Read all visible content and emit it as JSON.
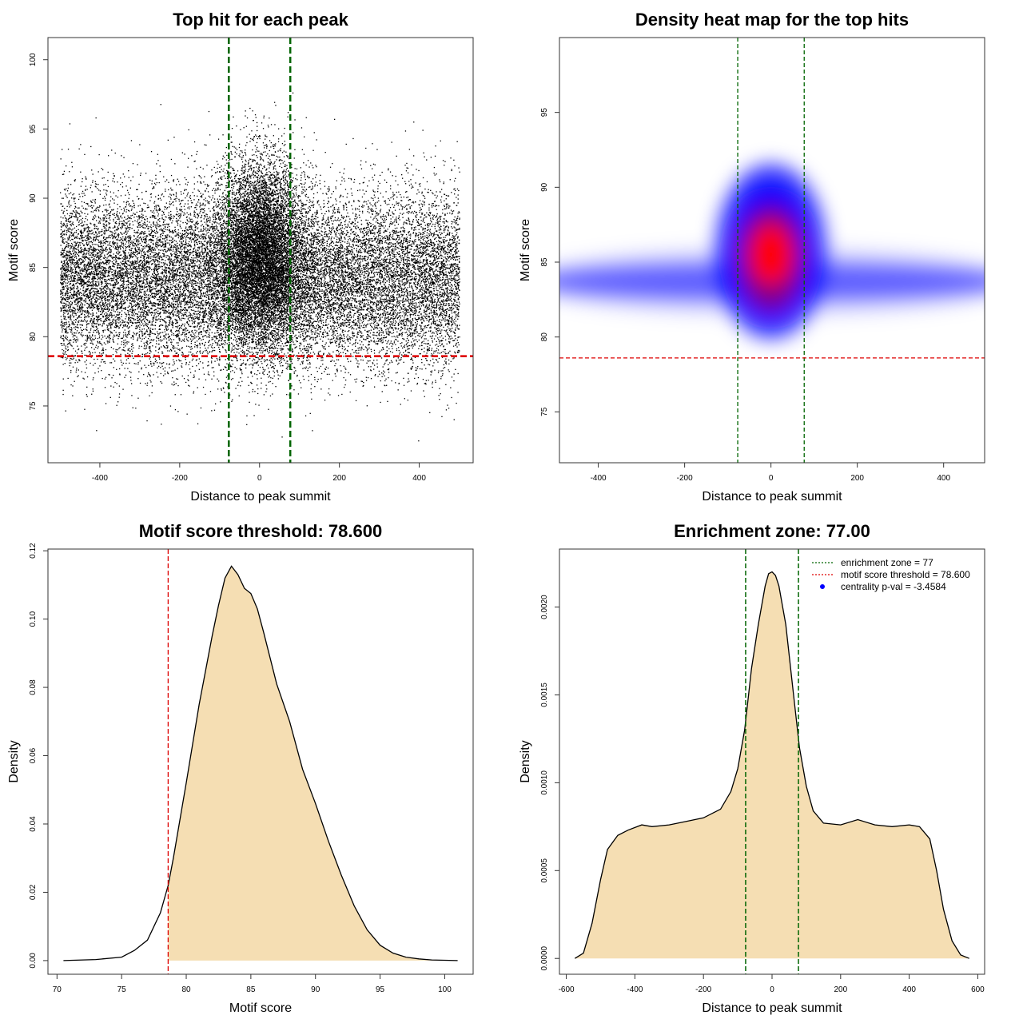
{
  "chart_data": [
    {
      "type": "scatter",
      "title": "Top hit for each peak",
      "xlabel": "Distance to peak summit",
      "ylabel": "Motif score",
      "xlim": [
        -530,
        535
      ],
      "ylim": [
        70.9,
        101.6
      ],
      "xticks": [
        -400,
        -200,
        0,
        200,
        400
      ],
      "yticks": [
        75,
        80,
        85,
        90,
        95,
        100
      ],
      "n_points_approx": 30000,
      "x_range": [
        -500,
        500
      ],
      "background_y_mean": 84.2,
      "background_y_sd": 3.1,
      "central_cluster": {
        "x_center": 0,
        "x_sd": 55,
        "y_mean": 86.0,
        "y_sd": 3.3
      },
      "reference_lines": {
        "vertical": [
          -77,
          77
        ],
        "vertical_color": "#006400",
        "horizontal": 78.6,
        "horizontal_color": "#dd0000"
      }
    },
    {
      "type": "heatmap",
      "title": "Density heat map for the top hits",
      "xlabel": "Distance to peak summit",
      "ylabel": "Motif score",
      "xlim": [
        -490,
        495
      ],
      "ylim": [
        71.6,
        100
      ],
      "xticks": [
        -400,
        -200,
        0,
        200,
        400
      ],
      "yticks": [
        75,
        80,
        85,
        90,
        95
      ],
      "palette": [
        "#ffffff",
        "#0000ff",
        "#ff0000"
      ],
      "peak": {
        "x": 0,
        "y": 85.5
      },
      "reference_lines": {
        "vertical": [
          -77,
          77
        ],
        "vertical_color": "#006400",
        "horizontal": 78.6,
        "horizontal_color": "#dd0000"
      }
    },
    {
      "type": "area",
      "title": "Motif score threshold: 78.600",
      "xlabel": "Motif score",
      "ylabel": "Density",
      "xlim": [
        69.3,
        102.2
      ],
      "ylim": [
        -0.004,
        0.1205
      ],
      "xticks": [
        70,
        75,
        80,
        85,
        90,
        95,
        100
      ],
      "yticks": [
        0.0,
        0.02,
        0.04,
        0.06,
        0.08,
        0.1,
        0.12
      ],
      "ytick_labels": [
        "0.00",
        "0.02",
        "0.04",
        "0.06",
        "0.08",
        "0.10",
        "0.12"
      ],
      "fill_color": "#f5deb3",
      "fill_from_x": 78.6,
      "x": [
        70.5,
        73,
        75,
        76,
        77,
        78,
        78.6,
        79,
        80,
        81,
        82,
        82.5,
        83,
        83.5,
        84,
        84.5,
        85,
        85.5,
        86,
        87,
        88,
        89,
        90,
        91,
        92,
        93,
        94,
        95,
        96,
        97,
        98,
        99,
        100,
        101
      ],
      "y": [
        0,
        0.0003,
        0.001,
        0.003,
        0.006,
        0.014,
        0.022,
        0.03,
        0.052,
        0.075,
        0.095,
        0.104,
        0.112,
        0.1155,
        0.113,
        0.109,
        0.1075,
        0.103,
        0.096,
        0.081,
        0.07,
        0.056,
        0.046,
        0.035,
        0.025,
        0.016,
        0.009,
        0.0045,
        0.0022,
        0.001,
        0.0005,
        0.0002,
        0.0001,
        0
      ],
      "reference_lines": {
        "vertical": [
          78.6
        ],
        "vertical_color": "#dd0000"
      }
    },
    {
      "type": "area",
      "title": "Enrichment zone: 77.00",
      "xlabel": "Distance to peak summit",
      "ylabel": "Density",
      "xlim": [
        -620,
        620
      ],
      "ylim": [
        -9e-05,
        0.00233
      ],
      "xticks": [
        -600,
        -400,
        -200,
        0,
        200,
        400,
        600
      ],
      "yticks": [
        0,
        0.0005,
        0.001,
        0.0015,
        0.002
      ],
      "ytick_labels": [
        "0.0000",
        "0.0005",
        "0.0010",
        "0.0015",
        "0.0020"
      ],
      "fill_color": "#f5deb3",
      "x": [
        -575,
        -550,
        -525,
        -500,
        -480,
        -450,
        -420,
        -380,
        -350,
        -300,
        -250,
        -200,
        -150,
        -120,
        -100,
        -80,
        -60,
        -40,
        -20,
        -10,
        0,
        10,
        20,
        40,
        60,
        80,
        100,
        120,
        150,
        200,
        250,
        300,
        350,
        400,
        430,
        460,
        480,
        500,
        525,
        550,
        575
      ],
      "y": [
        0,
        3e-05,
        0.0002,
        0.00045,
        0.00062,
        0.0007,
        0.00073,
        0.00076,
        0.00075,
        0.00076,
        0.00078,
        0.0008,
        0.00085,
        0.00095,
        0.00108,
        0.0013,
        0.00165,
        0.0019,
        0.00212,
        0.00219,
        0.0022,
        0.00218,
        0.00212,
        0.0019,
        0.00155,
        0.0012,
        0.00098,
        0.00084,
        0.00077,
        0.00076,
        0.00079,
        0.00076,
        0.00075,
        0.00076,
        0.00075,
        0.00068,
        0.0005,
        0.00028,
        0.0001,
        2e-05,
        0
      ],
      "reference_lines": {
        "vertical": [
          -77,
          77
        ],
        "vertical_color": "#006400"
      },
      "legend": {
        "position": "top-right",
        "entries": [
          {
            "label": "enrichment zone = 77",
            "color": "#006400",
            "style": "dotted-line"
          },
          {
            "label": "motif score threshold = 78.600",
            "color": "#dd0000",
            "style": "dotted-line"
          },
          {
            "label": "centrality p-val = -3.4584",
            "color": "#0000ff",
            "style": "point"
          }
        ]
      }
    }
  ]
}
